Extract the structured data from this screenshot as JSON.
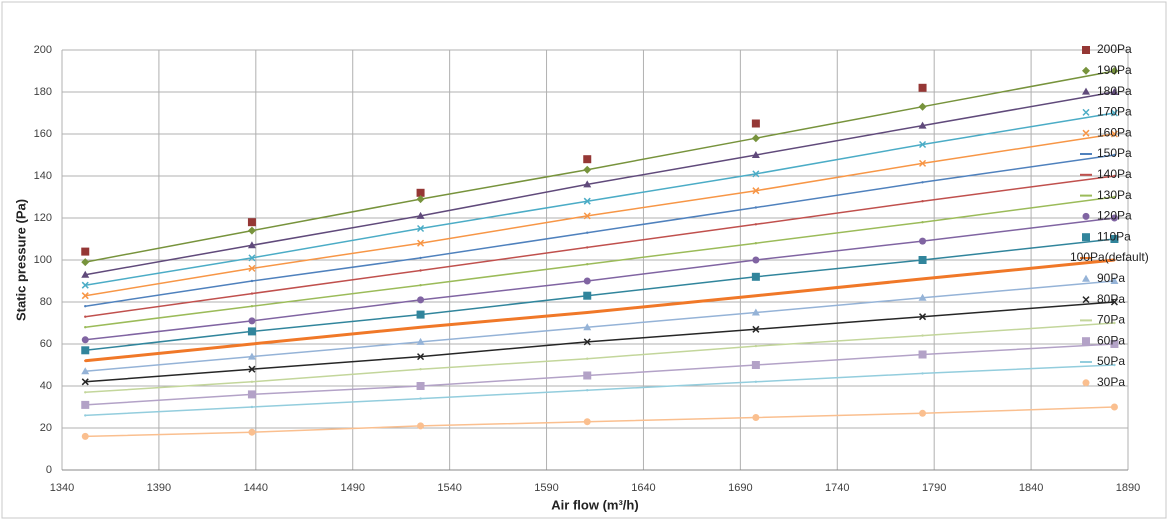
{
  "chart_data": {
    "type": "line",
    "xlabel": "Air flow (m³/h)",
    "ylabel": "Static pressure (Pa)",
    "x": [
      1352,
      1438,
      1525,
      1611,
      1698,
      1784,
      1883
    ],
    "xlim": [
      1340,
      1890
    ],
    "xticks": [
      1340,
      1390,
      1440,
      1490,
      1540,
      1590,
      1640,
      1690,
      1740,
      1790,
      1840,
      1890
    ],
    "ylim": [
      0,
      200
    ],
    "yticks": [
      0,
      20,
      40,
      60,
      80,
      100,
      120,
      140,
      160,
      180,
      200
    ],
    "grid": true,
    "legend": "right",
    "series": [
      {
        "name": "200Pa",
        "color": "#953735",
        "marker": "square",
        "line": false,
        "values": [
          104,
          118,
          132,
          148,
          165,
          182,
          null
        ]
      },
      {
        "name": "190Pa",
        "color": "#77933c",
        "marker": "diamond",
        "values": [
          99,
          114,
          129,
          143,
          158,
          173,
          190
        ]
      },
      {
        "name": "180Pa",
        "color": "#604a7b",
        "marker": "triangle",
        "values": [
          93,
          107,
          121,
          136,
          150,
          164,
          180
        ]
      },
      {
        "name": "170Pa",
        "color": "#4bacc6",
        "marker": "x",
        "values": [
          88,
          101,
          115,
          128,
          141,
          155,
          170
        ]
      },
      {
        "name": "160Pa",
        "color": "#f79646",
        "marker": "x",
        "values": [
          83,
          96,
          108,
          121,
          133,
          146,
          160
        ]
      },
      {
        "name": "150Pa",
        "color": "#4f81bd",
        "marker": "none",
        "values": [
          78,
          90,
          101,
          113,
          125,
          137,
          150
        ]
      },
      {
        "name": "140Pa",
        "color": "#c0504d",
        "marker": "none",
        "values": [
          73,
          84,
          95,
          106,
          117,
          128,
          140
        ]
      },
      {
        "name": "130Pa",
        "color": "#9bbb59",
        "marker": "none",
        "values": [
          68,
          78,
          88,
          98,
          108,
          118,
          130
        ]
      },
      {
        "name": "120Pa",
        "color": "#8064a2",
        "marker": "circle",
        "values": [
          62,
          71,
          81,
          90,
          100,
          109,
          120
        ]
      },
      {
        "name": "110Pa",
        "color": "#31859c",
        "marker": "square",
        "values": [
          57,
          66,
          74,
          83,
          92,
          100,
          110
        ]
      },
      {
        "name": "100Pa(default)",
        "color": "#f07828",
        "marker": "none",
        "width": 3,
        "values": [
          52,
          60,
          68,
          75,
          83,
          91,
          100
        ]
      },
      {
        "name": "90Pa",
        "color": "#95b3d7",
        "marker": "triangle",
        "values": [
          47,
          54,
          61,
          68,
          75,
          82,
          90
        ]
      },
      {
        "name": "80Pa",
        "color": "#262626",
        "marker": "x",
        "values": [
          42,
          48,
          54,
          61,
          67,
          73,
          80
        ]
      },
      {
        "name": "70Pa",
        "color": "#c3d69b",
        "marker": "none",
        "values": [
          37,
          42,
          48,
          53,
          59,
          64,
          70
        ]
      },
      {
        "name": "60Pa",
        "color": "#b3a2c7",
        "marker": "square",
        "values": [
          31,
          36,
          40,
          45,
          50,
          55,
          60
        ]
      },
      {
        "name": "50Pa",
        "color": "#93cddd",
        "marker": "none",
        "values": [
          26,
          30,
          34,
          38,
          42,
          46,
          50
        ]
      },
      {
        "name": "30Pa",
        "color": "#fabf8f",
        "marker": "circle",
        "values": [
          16,
          18,
          21,
          23,
          25,
          27,
          30
        ]
      }
    ]
  }
}
